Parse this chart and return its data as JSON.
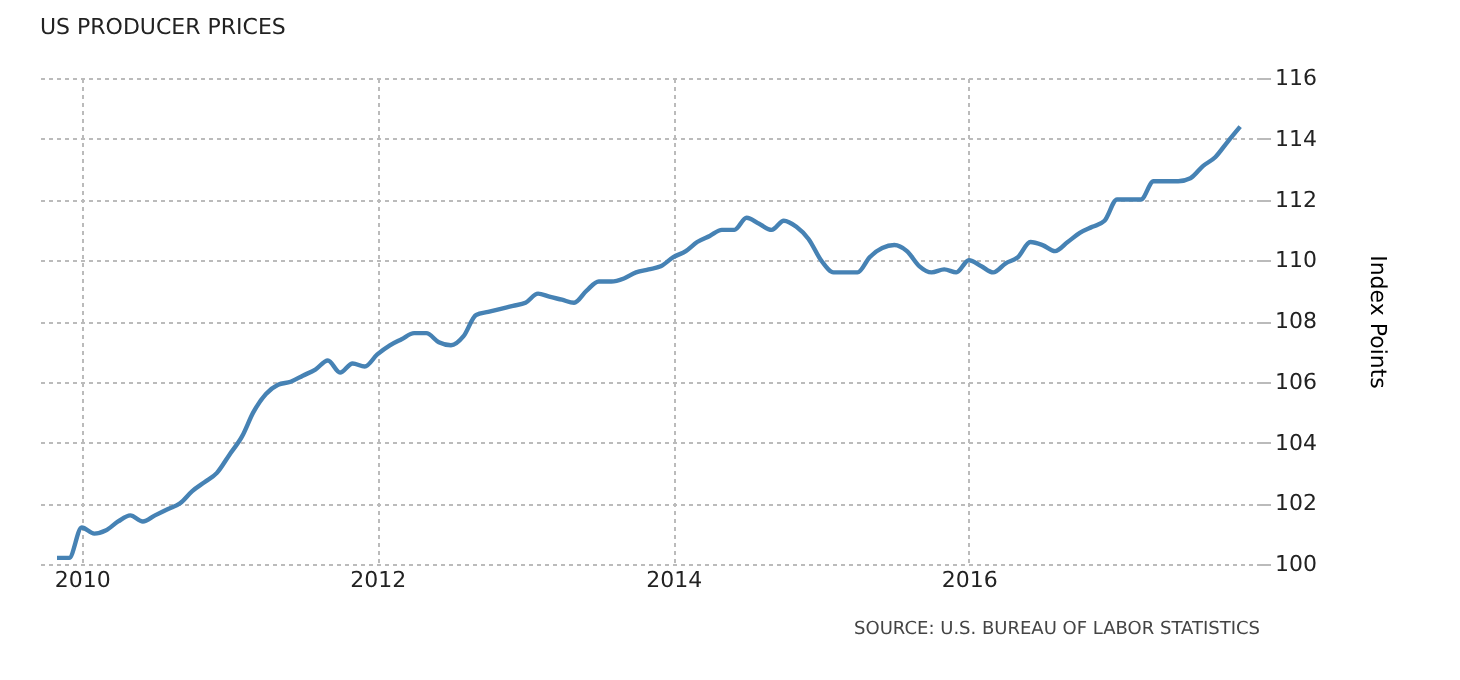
{
  "chart_data": {
    "type": "line",
    "title": "US PRODUCER PRICES",
    "ylabel": "Index Points",
    "annotations": [
      "SOURCE: U.S. BUREAU OF LABOR STATISTICS"
    ],
    "x": [
      "2009-11",
      "2009-12",
      "2010-01",
      "2010-02",
      "2010-03",
      "2010-04",
      "2010-05",
      "2010-06",
      "2010-07",
      "2010-08",
      "2010-09",
      "2010-10",
      "2010-11",
      "2010-12",
      "2011-01",
      "2011-02",
      "2011-03",
      "2011-04",
      "2011-05",
      "2011-06",
      "2011-07",
      "2011-08",
      "2011-09",
      "2011-10",
      "2011-11",
      "2011-12",
      "2012-01",
      "2012-02",
      "2012-03",
      "2012-04",
      "2012-05",
      "2012-06",
      "2012-07",
      "2012-08",
      "2012-09",
      "2012-10",
      "2012-11",
      "2012-12",
      "2013-01",
      "2013-02",
      "2013-03",
      "2013-04",
      "2013-05",
      "2013-06",
      "2013-07",
      "2013-08",
      "2013-09",
      "2013-10",
      "2013-11",
      "2013-12",
      "2014-01",
      "2014-02",
      "2014-03",
      "2014-04",
      "2014-05",
      "2014-06",
      "2014-07",
      "2014-08",
      "2014-09",
      "2014-10",
      "2014-11",
      "2014-12",
      "2015-01",
      "2015-02",
      "2015-03",
      "2015-04",
      "2015-05",
      "2015-06",
      "2015-07",
      "2015-08",
      "2015-09",
      "2015-10",
      "2015-11",
      "2015-12",
      "2016-01",
      "2016-02",
      "2016-03",
      "2016-04",
      "2016-05",
      "2016-06",
      "2016-07",
      "2016-08",
      "2016-09",
      "2016-10",
      "2016-11",
      "2016-12",
      "2017-01",
      "2017-02",
      "2017-03",
      "2017-04",
      "2017-05",
      "2017-06",
      "2017-07",
      "2017-08",
      "2017-09",
      "2017-10",
      "2017-11"
    ],
    "series": [
      {
        "color": "#4682b4",
        "values": [
          100.2,
          100.2,
          101.2,
          101.0,
          101.1,
          101.4,
          101.6,
          101.4,
          101.6,
          101.8,
          102.0,
          102.4,
          102.7,
          103.0,
          103.6,
          104.2,
          105.0,
          105.6,
          105.9,
          106.0,
          106.2,
          106.4,
          106.7,
          106.3,
          106.6,
          106.5,
          106.9,
          107.2,
          107.4,
          107.6,
          107.6,
          107.3,
          107.2,
          107.5,
          108.2,
          108.3,
          108.4,
          108.5,
          108.6,
          108.9,
          108.8,
          108.7,
          108.6,
          109.0,
          109.3,
          109.3,
          109.4,
          109.6,
          109.7,
          109.8,
          110.1,
          110.3,
          110.6,
          110.8,
          111.0,
          111.0,
          111.4,
          111.2,
          111.0,
          111.3,
          111.1,
          110.7,
          110.0,
          109.6,
          109.6,
          109.6,
          110.1,
          110.4,
          110.5,
          110.3,
          109.8,
          109.6,
          109.7,
          109.6,
          110.0,
          109.8,
          109.6,
          109.9,
          110.1,
          110.6,
          110.5,
          110.3,
          110.6,
          110.9,
          111.1,
          111.3,
          112.0,
          112.0,
          112.0,
          112.6,
          112.6,
          112.6,
          112.7,
          113.1,
          113.4,
          113.9,
          114.4
        ]
      }
    ],
    "xlim": [
      "2009-09-20",
      "2017-12-20"
    ],
    "xticks": [
      "2010",
      "2012",
      "2014",
      "2016"
    ],
    "ylim": [
      100,
      116
    ],
    "yticks": [
      100,
      102,
      104,
      106,
      108,
      110,
      112,
      114,
      116
    ],
    "grid": true,
    "line_style": "solid",
    "marker": "none",
    "legend": false
  }
}
